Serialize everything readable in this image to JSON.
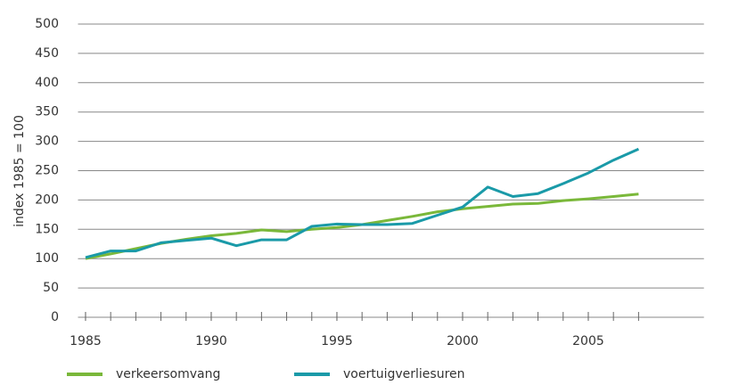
{
  "chart_data": {
    "type": "line",
    "y_label": "index 1985 = 100",
    "x": [
      1985,
      1986,
      1987,
      1988,
      1989,
      1990,
      1991,
      1992,
      1993,
      1994,
      1995,
      1996,
      1997,
      1998,
      1999,
      2000,
      2001,
      2002,
      2003,
      2004,
      2005,
      2006,
      2007
    ],
    "series": [
      {
        "name": "verkeersomvang",
        "color": "#7ab83a",
        "values": [
          100,
          108,
          117,
          126,
          133,
          139,
          143,
          149,
          146,
          150,
          153,
          158,
          165,
          172,
          180,
          185,
          189,
          193,
          194,
          199,
          202,
          206,
          210
        ]
      },
      {
        "name": "voertuigverliesuren",
        "color": "#1a9aa8",
        "values": [
          102,
          113,
          113,
          127,
          131,
          135,
          122,
          132,
          132,
          155,
          159,
          158,
          158,
          160,
          174,
          188,
          222,
          206,
          211,
          228,
          246,
          268,
          287
        ]
      }
    ],
    "xlim": [
      1984.7,
      2009.6
    ],
    "xticks": [
      1985,
      1990,
      1995,
      2000,
      2005
    ],
    "xminorticks": [
      1985,
      1986,
      1987,
      1988,
      1989,
      1990,
      1991,
      1992,
      1993,
      1994,
      1995,
      1996,
      1997,
      1998,
      1999,
      2000,
      2001,
      2002,
      2003,
      2004,
      2005,
      2006,
      2007
    ],
    "ylim": [
      0,
      500
    ],
    "yticks": [
      0,
      50,
      100,
      150,
      200,
      250,
      300,
      350,
      400,
      450,
      500
    ],
    "grid": true,
    "legend": "bottom"
  }
}
